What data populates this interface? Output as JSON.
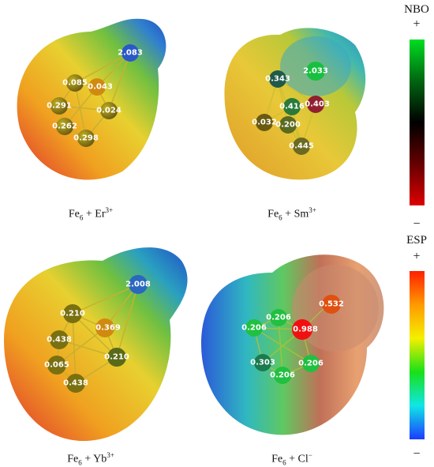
{
  "panels": [
    {
      "formula": "Fe",
      "sub": "6",
      "plus": " + ",
      "ion": "Er",
      "charge": "3+",
      "values": [
        "2.083",
        "0.085",
        "0.043",
        "0.291",
        "0.024",
        "0.262",
        "0.298"
      ]
    },
    {
      "formula": "Fe",
      "sub": "6",
      "plus": " + ",
      "ion": "Sm",
      "charge": "3+",
      "values": [
        "2.033",
        "0.343",
        "0.416",
        "0.403",
        "0.032",
        "0.200",
        "0.445"
      ]
    },
    {
      "formula": "Fe",
      "sub": "6",
      "plus": " + ",
      "ion": "Yb",
      "charge": "3+",
      "values": [
        "2.008",
        "0.210",
        "0.369",
        "0.438",
        "0.210",
        "0.065",
        "0.438"
      ]
    },
    {
      "formula": "Fe",
      "sub": "6",
      "plus": " + ",
      "ion": "Cl",
      "charge": "−",
      "values": [
        "0.532",
        "0.206",
        "0.206",
        "0.988",
        "0.303",
        "0.206",
        "0.206"
      ]
    }
  ],
  "scales": {
    "nbo": {
      "title": "NBO",
      "plus": "+",
      "minus": "−",
      "colors": [
        "#00dd22",
        "#006611",
        "#000000",
        "#660000",
        "#dd0000"
      ]
    },
    "esp": {
      "title": "ESP",
      "plus": "+",
      "minus": "−",
      "colors": [
        "#ff2000",
        "#ff9a00",
        "#f4f000",
        "#18e018",
        "#10e6e6",
        "#1c3cff"
      ]
    }
  }
}
